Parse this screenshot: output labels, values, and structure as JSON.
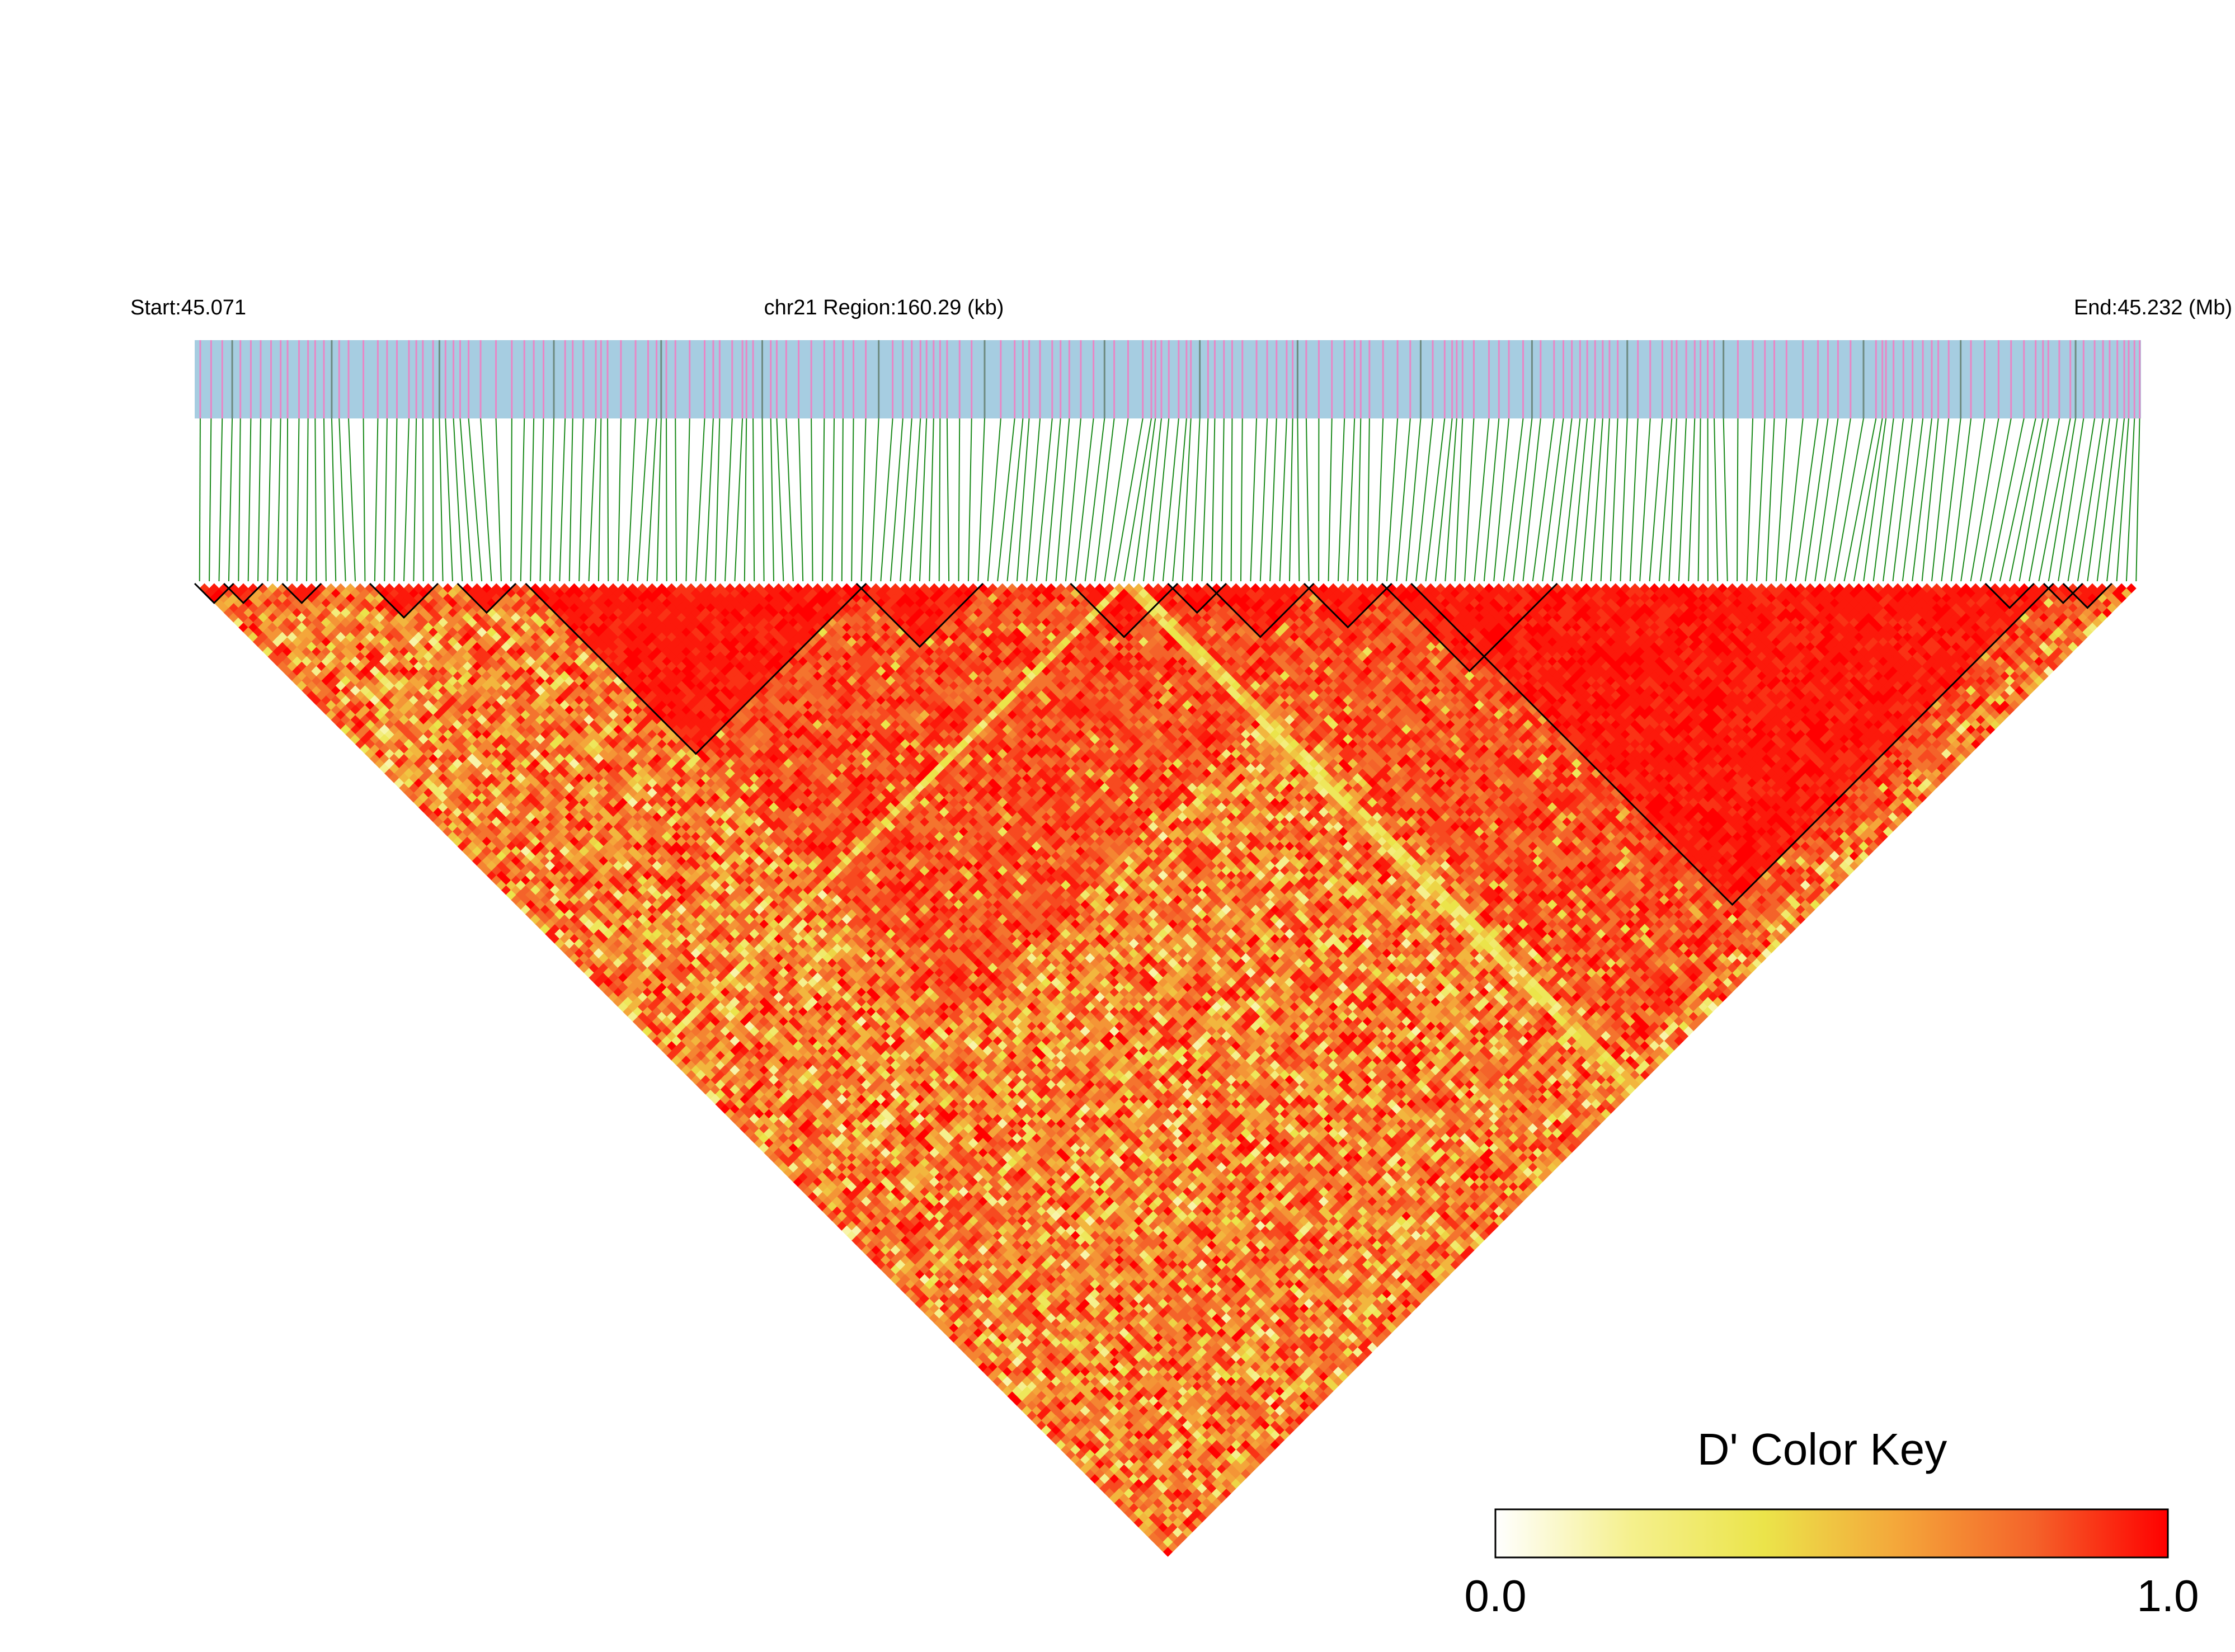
{
  "chart_data": {
    "type": "heatmap",
    "subtype": "LD triangle heatmap (D')",
    "header": {
      "start_label": "Start:45.071",
      "region_label": "chr21 Region:160.29 (kb)",
      "end_label": "End:45.232 (Mb)"
    },
    "region": {
      "chromosome": "chr21",
      "start_mb": 45.071,
      "end_mb": 45.232,
      "length_kb": 160.29
    },
    "n_snps": 200,
    "snp_track_colors": {
      "background": "#a6cde1",
      "marker": "#e887c6",
      "marker_alt": "#6d8a80"
    },
    "connector_color": "#1a8a1a",
    "haplotype_blocks": [
      {
        "from": 0,
        "to": 3
      },
      {
        "from": 3,
        "to": 6
      },
      {
        "from": 9,
        "to": 12
      },
      {
        "from": 18,
        "to": 24
      },
      {
        "from": 27,
        "to": 32
      },
      {
        "from": 34,
        "to": 68
      },
      {
        "from": 68,
        "to": 80
      },
      {
        "from": 90,
        "to": 100
      },
      {
        "from": 100,
        "to": 105
      },
      {
        "from": 104,
        "to": 114
      },
      {
        "from": 114,
        "to": 122
      },
      {
        "from": 122,
        "to": 139
      },
      {
        "from": 125,
        "to": 190
      },
      {
        "from": 184,
        "to": 188
      },
      {
        "from": 190,
        "to": 193
      },
      {
        "from": 192,
        "to": 196
      }
    ],
    "color_key": {
      "title": "D' Color Key",
      "min_label": "0.0",
      "max_label": "1.0",
      "colors": [
        "#ffffff",
        "#f5f08e",
        "#ebe44a",
        "#f4a63a",
        "#f4632a",
        "#ff0000"
      ]
    }
  }
}
